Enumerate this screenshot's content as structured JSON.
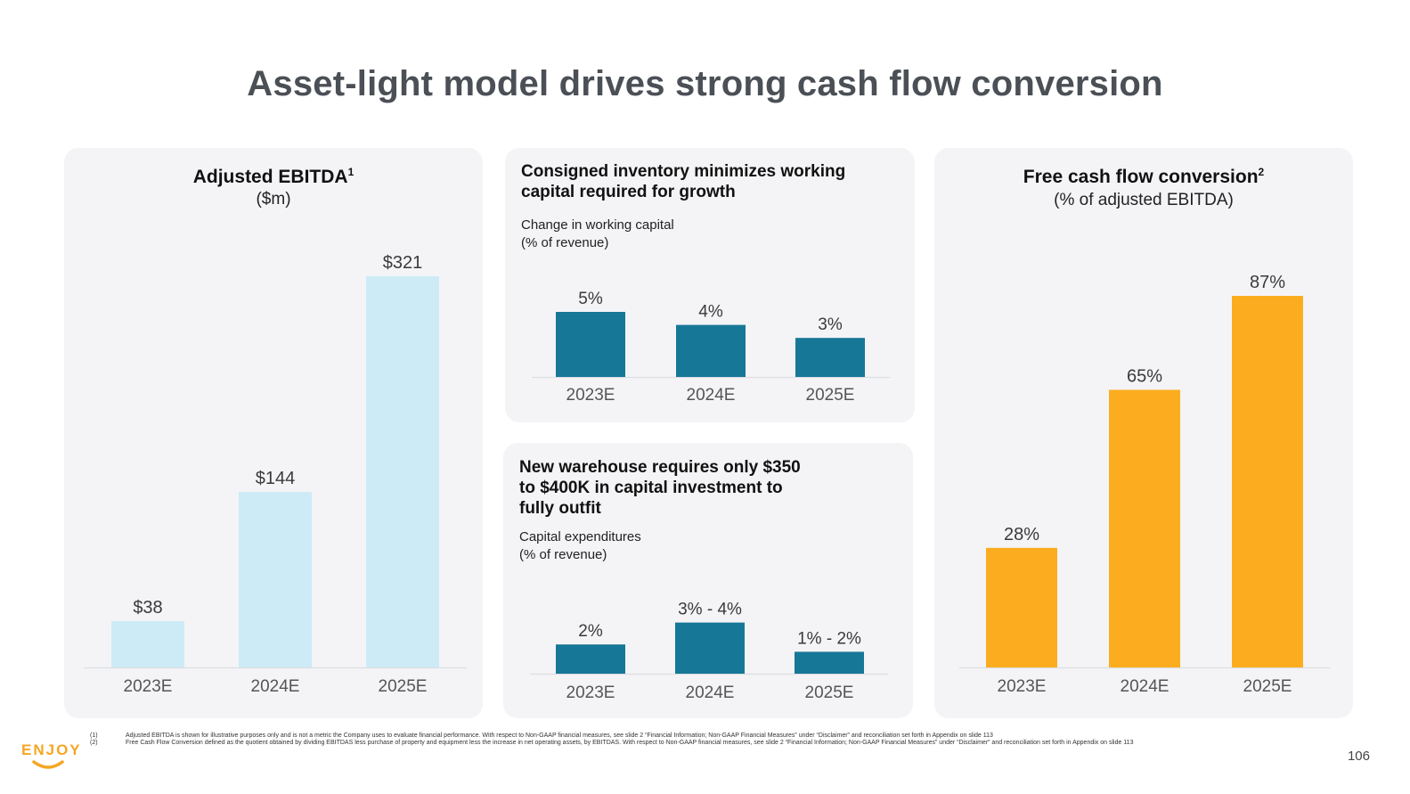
{
  "page": {
    "title": "Asset-light model drives strong cash flow conversion",
    "page_number": "106",
    "logo_text": "ENJOY",
    "colors": {
      "ebitda_bar": "#cdebf6",
      "teal_bar": "#177797",
      "orange_bar": "#fcad1f",
      "panel_bg": "#f4f4f7",
      "title": "#4b4f56"
    }
  },
  "panels": {
    "ebitda": {
      "title": "Adjusted EBITDA",
      "title_sup": "1",
      "subtitle": "($m)"
    },
    "working_capital": {
      "title_line1": "Consigned inventory minimizes working",
      "title_line2": "capital required for growth",
      "sub_line1": "Change in working capital",
      "sub_line2": "(% of revenue)"
    },
    "capex": {
      "title_line1": "New warehouse requires only $350",
      "title_line2": "to $400K in capital investment to",
      "title_line3": "fully outfit",
      "sub_line1": "Capital expenditures",
      "sub_line2": "(% of revenue)"
    },
    "fcf": {
      "title": "Free cash flow conversion",
      "title_sup": "2",
      "subtitle": "(% of adjusted EBITDA)"
    }
  },
  "footnotes": {
    "nums": [
      "(1)",
      "(2)"
    ],
    "items": [
      "Adjusted EBITDA is shown for illustrative purposes only and is not a metric the Company uses to evaluate financial performance. With respect to Non-GAAP financial measures, see slide 2 “Financial Information; Non-GAAP Financial Measures” under “Disclaimer” and reconciliation set forth in Appendix on slide 113",
      "Free Cash Flow Conversion defined as the quotient obtained by dividing EBITDAS less purchase of property and equipment less the increase in net operating assets, by EBITDAS. With respect to Non-GAAP financial measures, see slide 2 “Financial Information; Non-GAAP Financial Measures” under “Disclaimer” and reconciliation set forth in Appendix on slide 113"
    ]
  },
  "chart_data": [
    {
      "type": "bar",
      "title": "Adjusted EBITDA",
      "subtitle": "($m)",
      "categories": [
        "2023E",
        "2024E",
        "2025E"
      ],
      "values": [
        38,
        144,
        321
      ],
      "labels": [
        "$38",
        "$144",
        "$321"
      ],
      "ylim": [
        0,
        321
      ],
      "color": "#cdebf6",
      "grid": false
    },
    {
      "type": "bar",
      "title": "Change in working capital",
      "subtitle": "(% of revenue)",
      "categories": [
        "2023E",
        "2024E",
        "2025E"
      ],
      "values": [
        5,
        4,
        3
      ],
      "labels": [
        "5%",
        "4%",
        "3%"
      ],
      "ylim": [
        0,
        5
      ],
      "color": "#177797",
      "grid": false
    },
    {
      "type": "bar",
      "title": "Capital expenditures",
      "subtitle": "(% of revenue)",
      "categories": [
        "2023E",
        "2024E",
        "2025E"
      ],
      "values": [
        2,
        3.5,
        1.5
      ],
      "labels": [
        "2%",
        "3% - 4%",
        "1% - 2%"
      ],
      "ylim": [
        0,
        5
      ],
      "color": "#177797",
      "grid": false
    },
    {
      "type": "bar",
      "title": "Free cash flow conversion",
      "subtitle": "(% of adjusted EBITDA)",
      "categories": [
        "2023E",
        "2024E",
        "2025E"
      ],
      "values": [
        28,
        65,
        87
      ],
      "labels": [
        "28%",
        "65%",
        "87%"
      ],
      "ylim": [
        0,
        87
      ],
      "color": "#fcad1f",
      "grid": false
    }
  ]
}
